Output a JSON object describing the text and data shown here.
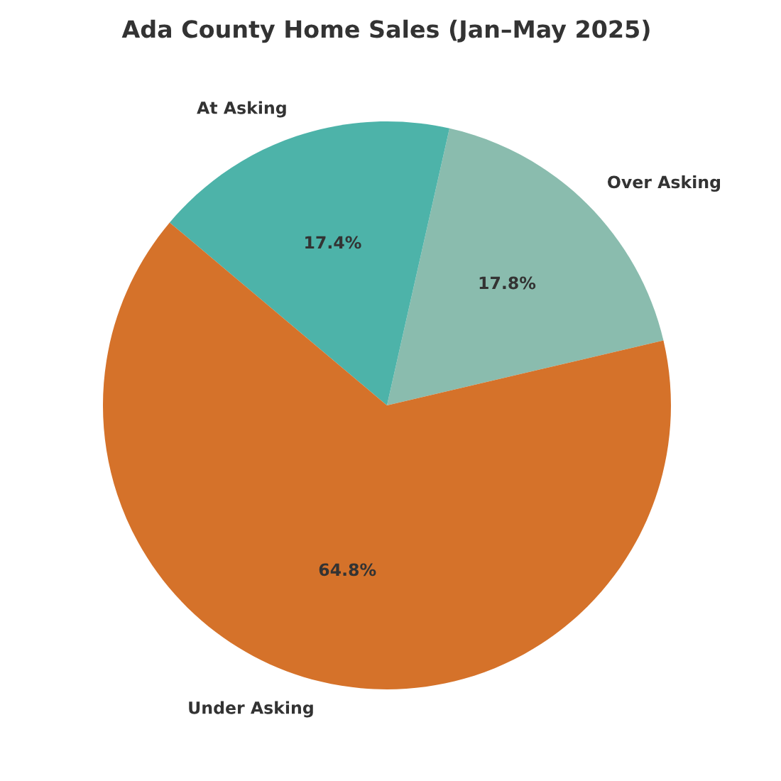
{
  "chart_data": {
    "type": "pie",
    "title": "Ada County Home Sales (Jan–May 2025)",
    "categories": [
      "Over Asking",
      "At Asking",
      "Under Asking"
    ],
    "values": [
      17.8,
      17.4,
      64.8
    ],
    "colors": [
      "#8abcae",
      "#4db3a9",
      "#d5722a"
    ],
    "value_labels": [
      "17.8%",
      "17.4%",
      "64.8%"
    ]
  }
}
